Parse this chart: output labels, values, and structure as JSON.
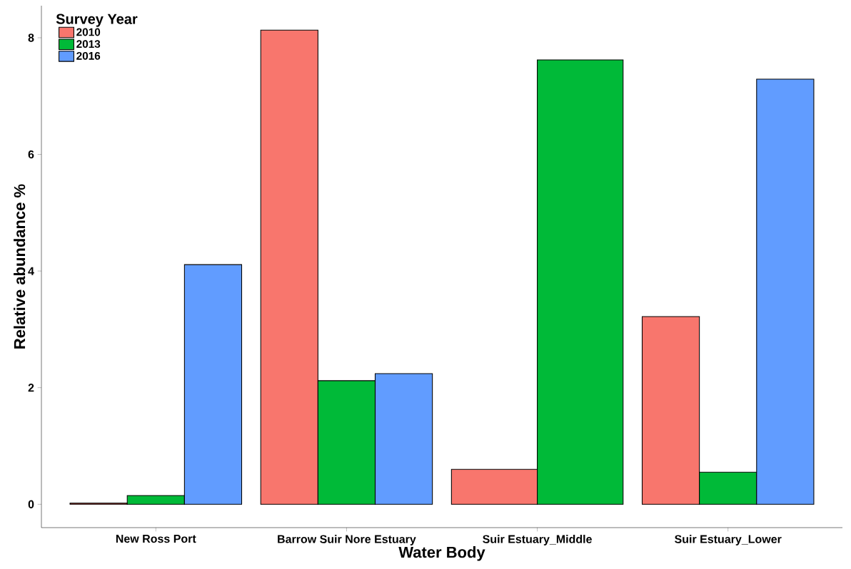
{
  "chart_data": {
    "type": "bar",
    "xlabel": "Water Body",
    "ylabel": "Relative abundance %",
    "legend_title": "Survey Year",
    "categories": [
      "New Ross Port",
      "Barrow Suir Nore Estuary",
      "Suir Estuary_Middle",
      "Suir Estuary_Lower"
    ],
    "series": [
      {
        "name": "2010",
        "color": "#f8766d",
        "values": [
          0.02,
          8.13,
          0.6,
          3.22
        ]
      },
      {
        "name": "2013",
        "color": "#00ba38",
        "values": [
          0.15,
          2.12,
          7.62,
          0.55
        ]
      },
      {
        "name": "2016",
        "color": "#619cff",
        "values": [
          4.11,
          2.24,
          null,
          7.29
        ]
      }
    ],
    "ylim": [
      -0.4,
      8.55
    ],
    "yticks": [
      0,
      2,
      4,
      6,
      8
    ],
    "grid": false,
    "legend": "top left"
  }
}
